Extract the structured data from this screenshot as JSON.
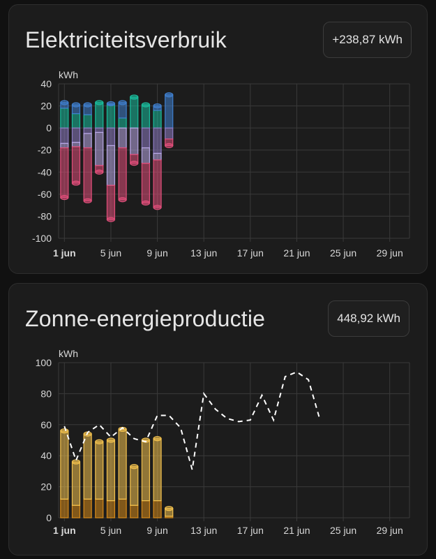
{
  "cards": [
    {
      "title": "Elektriciteitsverbruik",
      "total": "+238,87 kWh"
    },
    {
      "title": "Zonne-energieproductie",
      "total": "448,92 kWh"
    }
  ],
  "chart_data": [
    {
      "type": "bar",
      "stacked": true,
      "ylabel": "kWh",
      "ylim": [
        -100,
        40
      ],
      "yticks": [
        40,
        20,
        0,
        -20,
        -40,
        -60,
        -80,
        -100
      ],
      "xlim": [
        0.5,
        30.7
      ],
      "xticks": [
        {
          "day": 1,
          "label": "1 jun",
          "bold": true
        },
        {
          "day": 5,
          "label": "5 jun",
          "bold": false
        },
        {
          "day": 9,
          "label": "9 jun",
          "bold": false
        },
        {
          "day": 13,
          "label": "13 jun",
          "bold": false
        },
        {
          "day": 17,
          "label": "17 jun",
          "bold": false
        },
        {
          "day": 21,
          "label": "21 jun",
          "bold": false
        },
        {
          "day": 25,
          "label": "25 jun",
          "bold": false
        },
        {
          "day": 29,
          "label": "29 jun",
          "bold": false
        }
      ],
      "grid": true,
      "days": [
        1,
        2,
        3,
        4,
        5,
        6,
        7,
        8,
        9,
        10
      ],
      "series": [
        {
          "color": "#1abc9c",
          "stack": "pos",
          "values": [
            18,
            13,
            12,
            23,
            21,
            9,
            28,
            21,
            16,
            0
          ]
        },
        {
          "color": "#3f7fce",
          "stack": "pos",
          "values": [
            5,
            8,
            9,
            0,
            1,
            14,
            0,
            0,
            4,
            30
          ]
        },
        {
          "color": "#8e7cc3",
          "stack": "neg",
          "values": [
            -14,
            -13,
            -5,
            -4,
            -16,
            0,
            0,
            -18,
            -23,
            -10
          ]
        },
        {
          "color": "#b9a8e6",
          "stack": "neg",
          "values": [
            -4,
            -4,
            -13,
            -30,
            -36,
            -18,
            -24,
            -14,
            -6,
            0
          ]
        },
        {
          "color": "#e04e7a",
          "stack": "neg",
          "values": [
            -45,
            -33,
            -48,
            -6,
            -31,
            -47,
            -8,
            -36,
            -43,
            -6
          ]
        }
      ]
    },
    {
      "type": "bar",
      "stacked": true,
      "ylabel": "kWh",
      "ylim": [
        0,
        100
      ],
      "yticks": [
        100,
        80,
        60,
        40,
        20,
        0
      ],
      "xlim": [
        0.5,
        30.7
      ],
      "xticks": [
        {
          "day": 1,
          "label": "1 jun",
          "bold": true
        },
        {
          "day": 5,
          "label": "5 jun",
          "bold": false
        },
        {
          "day": 9,
          "label": "9 jun",
          "bold": false
        },
        {
          "day": 13,
          "label": "13 jun",
          "bold": false
        },
        {
          "day": 17,
          "label": "17 jun",
          "bold": false
        },
        {
          "day": 21,
          "label": "21 jun",
          "bold": false
        },
        {
          "day": 25,
          "label": "25 jun",
          "bold": false
        },
        {
          "day": 29,
          "label": "29 jun",
          "bold": false
        }
      ],
      "grid": true,
      "days": [
        1,
        2,
        3,
        4,
        5,
        6,
        7,
        8,
        9,
        10
      ],
      "series": [
        {
          "color": "#d68a1a",
          "values": [
            12,
            8,
            12,
            12,
            11,
            12,
            8,
            11,
            11,
            1
          ]
        },
        {
          "color": "#f2c14e",
          "values": [
            44,
            28,
            42,
            37,
            39,
            45,
            25,
            39,
            40,
            5
          ]
        }
      ],
      "forecast": {
        "style": "dashed",
        "color": "#ffffff",
        "x": [
          1,
          2,
          3,
          4,
          5,
          6,
          7,
          8,
          9,
          10,
          11,
          12,
          13,
          14,
          15,
          16,
          17,
          18,
          19,
          20,
          21,
          22,
          23
        ],
        "y": [
          59,
          37,
          55,
          60,
          52,
          58,
          51,
          49,
          66,
          66,
          58,
          31,
          80,
          70,
          64,
          62,
          63,
          79,
          63,
          91,
          94,
          89,
          63
        ]
      }
    }
  ]
}
